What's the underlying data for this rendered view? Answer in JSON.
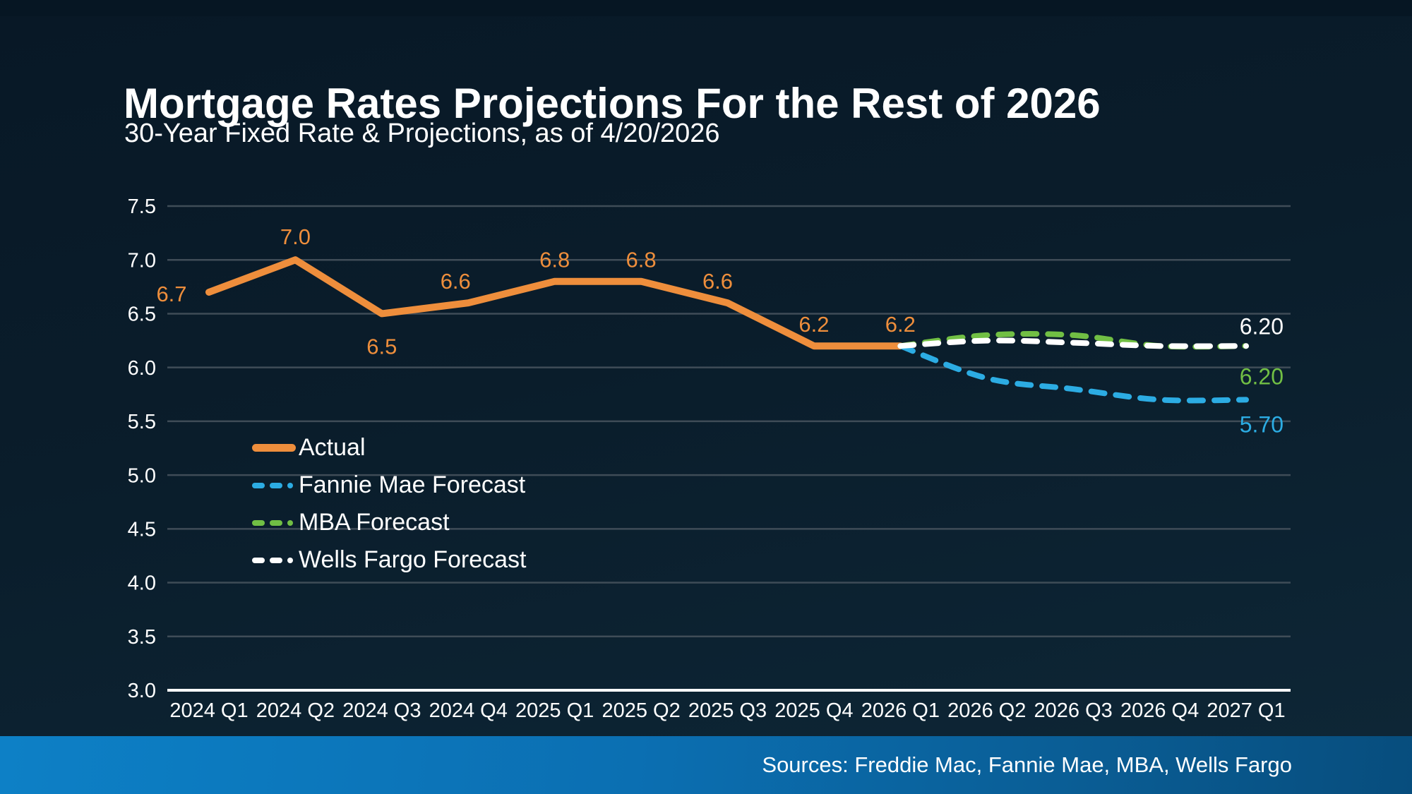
{
  "slide": {
    "title": "Mortgage Rates Projections For the Rest of 2026",
    "subtitle": "30-Year Fixed Rate & Projections, as of 4/20/2026",
    "sources": "Sources: Freddie Mac, Fannie Mae, MBA, Wells Fargo"
  },
  "colors": {
    "actual": "#EE8E3C",
    "fannie_mae": "#2CACE3",
    "mba": "#71BF44",
    "wells_fargo": "#FFFFFF",
    "gridline": "#3F4C57",
    "axis_line": "#FFFFFF",
    "tick_text": "#FFFFFF"
  },
  "chart_data": {
    "type": "line",
    "title": "Mortgage Rates Projections For the Rest of 2026",
    "subtitle": "30-Year Fixed Rate & Projections, as of 4/20/2026",
    "categories": [
      "2024 Q1",
      "2024 Q2",
      "2024 Q3",
      "2024 Q4",
      "2025 Q1",
      "2025 Q2",
      "2025 Q3",
      "2025 Q4",
      "2026 Q1",
      "2026 Q2",
      "2026 Q3",
      "2026 Q4",
      "2027 Q1"
    ],
    "y_axis": {
      "min": 3.0,
      "max": 7.5,
      "step": 0.5,
      "tick_labels": [
        "7.5",
        "7.0",
        "6.5",
        "6.0",
        "5.5",
        "5.0",
        "4.5",
        "4.0",
        "3.5",
        "3.0"
      ]
    },
    "grid": true,
    "legend_position": "inside-left-middle",
    "series": [
      {
        "name": "Actual",
        "color": "#EE8E3C",
        "style": "solid",
        "values": [
          6.7,
          7.0,
          6.5,
          6.6,
          6.8,
          6.8,
          6.6,
          6.2,
          6.2,
          null,
          null,
          null,
          null
        ],
        "point_labels": [
          "6.7",
          "7.0",
          "6.5",
          "6.6",
          "6.8",
          "6.8",
          "6.6",
          "6.2",
          "6.2"
        ]
      },
      {
        "name": "Fannie Mae Forecast",
        "color": "#2CACE3",
        "style": "dashed",
        "values": [
          null,
          null,
          null,
          null,
          null,
          null,
          null,
          null,
          6.2,
          5.9,
          5.8,
          5.7,
          5.7
        ],
        "end_label": "5.70"
      },
      {
        "name": "MBA Forecast",
        "color": "#71BF44",
        "style": "dashed",
        "values": [
          null,
          null,
          null,
          null,
          null,
          null,
          null,
          null,
          6.2,
          6.3,
          6.3,
          6.2,
          6.2
        ],
        "end_label": "6.20"
      },
      {
        "name": "Wells Fargo Forecast",
        "color": "#FFFFFF",
        "style": "dashed",
        "values": [
          null,
          null,
          null,
          null,
          null,
          null,
          null,
          null,
          6.2,
          6.25,
          6.23,
          6.2,
          6.2
        ],
        "end_label": "6.20"
      }
    ]
  }
}
